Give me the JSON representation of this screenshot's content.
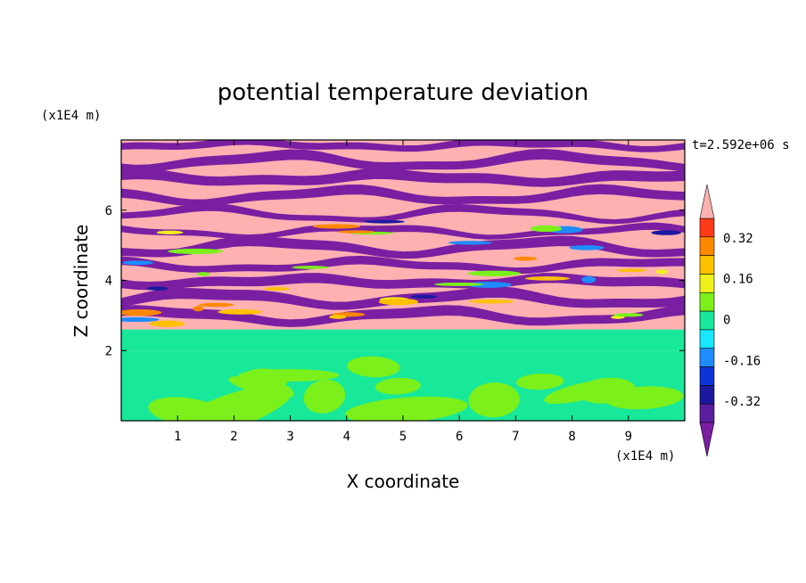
{
  "chart_data": {
    "type": "heatmap",
    "title": "potential temperature deviation",
    "xlabel": "X coordinate",
    "ylabel": "Z coordinate",
    "x_unit": "(x1E4 m)",
    "y_unit": "(x1E4 m)",
    "time_label": "t=2.592e+06 s",
    "xlim": [
      0,
      10
    ],
    "ylim": [
      0,
      8
    ],
    "x_ticks": [
      "1",
      "2",
      "3",
      "4",
      "5",
      "6",
      "7",
      "8",
      "9"
    ],
    "y_ticks": [
      "2",
      "4",
      "6"
    ],
    "colorbar": {
      "levels": [
        -0.48,
        -0.4,
        -0.32,
        -0.24,
        -0.16,
        -0.08,
        0,
        0.08,
        0.16,
        0.24,
        0.32,
        0.4,
        0.48
      ],
      "colors": [
        "#7a1fa2",
        "#5b1f9e",
        "#1a1aa0",
        "#0c34d9",
        "#1f8cff",
        "#19e6ff",
        "#18e89a",
        "#7cf01a",
        "#f0f01a",
        "#ffc000",
        "#ff8800",
        "#ff3a1a",
        "#ffb1b1"
      ],
      "tick_labels": [
        "0.32",
        "0.16",
        "0",
        "-0.16",
        "-0.32"
      ],
      "tick_values": [
        0.32,
        0.16,
        0,
        -0.16,
        -0.32
      ]
    },
    "layers": [
      {
        "z_from": 0,
        "z_to": 2.0,
        "value": 0.0,
        "description": "lower layer with patches of 0.08"
      },
      {
        "z_from": 2.0,
        "z_to": 2.6,
        "value": 0.0
      },
      {
        "z_from": 2.6,
        "z_to": 8.0,
        "value_alternating": [
          0.48,
          -0.48
        ],
        "description": "alternating bands"
      }
    ],
    "grid": false
  }
}
